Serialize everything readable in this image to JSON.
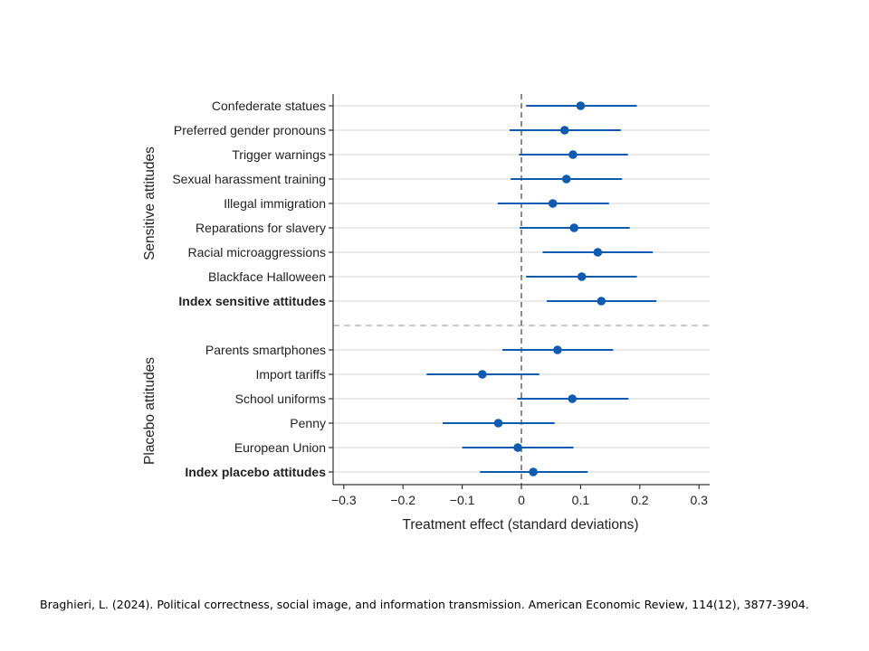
{
  "chart_data": {
    "type": "coefficient-plot",
    "xlabel": "Treatment effect (standard deviations)",
    "xlim": [
      -0.32,
      0.32
    ],
    "xticks": [
      -0.3,
      -0.2,
      -0.1,
      0,
      0.1,
      0.2,
      0.3
    ],
    "xtick_labels": [
      "−0.3",
      "−0.2",
      "−0.1",
      "0",
      "0.1",
      "0.2",
      "0.3"
    ],
    "reference_line": 0,
    "grid": true,
    "groups": [
      {
        "name": "Sensitive attitudes",
        "items": [
          {
            "label": "Confederate statues",
            "estimate": 0.1,
            "ci": [
              0.008,
              0.195
            ],
            "bold": false
          },
          {
            "label": "Preferred gender pronouns",
            "estimate": 0.073,
            "ci": [
              -0.02,
              0.168
            ],
            "bold": false
          },
          {
            "label": "Trigger warnings",
            "estimate": 0.087,
            "ci": [
              -0.004,
              0.18
            ],
            "bold": false
          },
          {
            "label": "Sexual harassment training",
            "estimate": 0.076,
            "ci": [
              -0.018,
              0.17
            ],
            "bold": false
          },
          {
            "label": "Illegal immigration",
            "estimate": 0.053,
            "ci": [
              -0.04,
              0.148
            ],
            "bold": false
          },
          {
            "label": "Reparations for slavery",
            "estimate": 0.089,
            "ci": [
              -0.003,
              0.183
            ],
            "bold": false
          },
          {
            "label": "Racial microaggressions",
            "estimate": 0.129,
            "ci": [
              0.036,
              0.222
            ],
            "bold": false
          },
          {
            "label": "Blackface Halloween",
            "estimate": 0.102,
            "ci": [
              0.008,
              0.195
            ],
            "bold": false
          },
          {
            "label": "Index sensitive attitudes",
            "estimate": 0.135,
            "ci": [
              0.043,
              0.228
            ],
            "bold": true
          }
        ]
      },
      {
        "name": "Placebo attitudes",
        "items": [
          {
            "label": "Parents smartphones",
            "estimate": 0.061,
            "ci": [
              -0.032,
              0.155
            ],
            "bold": false
          },
          {
            "label": "Import tariffs",
            "estimate": -0.066,
            "ci": [
              -0.16,
              0.03
            ],
            "bold": false
          },
          {
            "label": "School uniforms",
            "estimate": 0.086,
            "ci": [
              -0.007,
              0.181
            ],
            "bold": false
          },
          {
            "label": "Penny",
            "estimate": -0.039,
            "ci": [
              -0.133,
              0.056
            ],
            "bold": false
          },
          {
            "label": "European Union",
            "estimate": -0.006,
            "ci": [
              -0.1,
              0.088
            ],
            "bold": false
          },
          {
            "label": "Index placebo attitudes",
            "estimate": 0.02,
            "ci": [
              -0.07,
              0.112
            ],
            "bold": true
          }
        ]
      }
    ],
    "colors": {
      "marker": "#0f5bb0",
      "grid": "#d4d4d4",
      "axis": "#333333",
      "reference": "#666666",
      "separator": "#a8a8a8"
    }
  },
  "citation": "Braghieri, L. (2024). Political correctness, social image, and information transmission. American Economic Review, 114(12), 3877-3904."
}
